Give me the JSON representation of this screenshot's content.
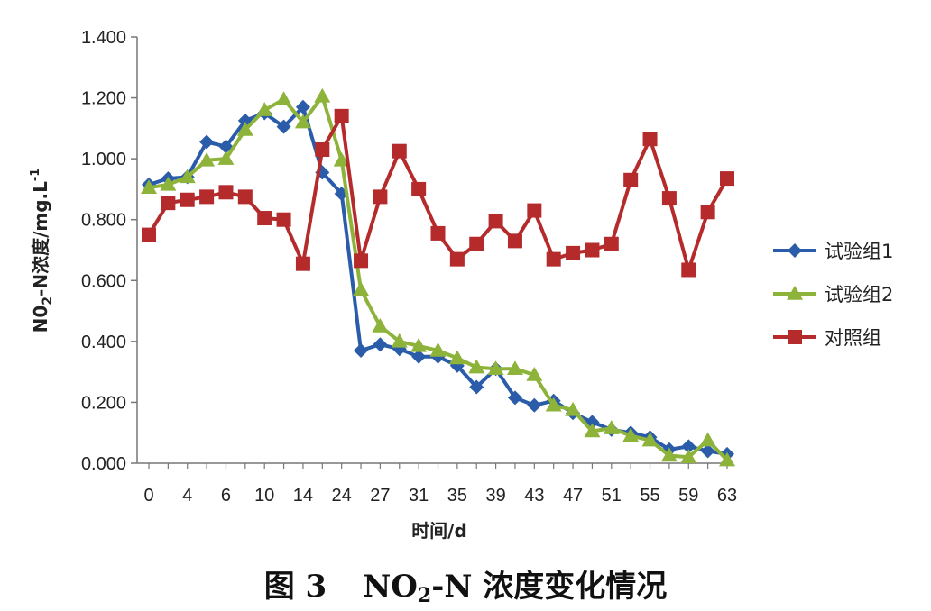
{
  "chart_data": {
    "type": "line",
    "caption_prefix": "图 3",
    "caption_rest": "-N 浓度变化情况",
    "caption_chem": {
      "base": "NO",
      "sub": "2"
    },
    "xlabel": "时间/d",
    "ylabel": {
      "pre": "N0",
      "sub": "2",
      "mid": "-N浓度/mg.L",
      "sup": "-1"
    },
    "ylim": [
      0,
      1.4
    ],
    "yticks": [
      "0.000",
      "0.200",
      "0.400",
      "0.600",
      "0.800",
      "1.000",
      "1.200",
      "1.400"
    ],
    "ytick_values": [
      0,
      0.2,
      0.4,
      0.6,
      0.8,
      1.0,
      1.2,
      1.4
    ],
    "xtick_labels": [
      "0",
      "4",
      "6",
      "10",
      "14",
      "24",
      "27",
      "31",
      "35",
      "39",
      "43",
      "47",
      "51",
      "55",
      "59",
      "63"
    ],
    "grid": false,
    "legend_position": "right",
    "series": [
      {
        "name": "试验组1",
        "color": "#2a5caa",
        "marker": "diamond",
        "values": [
          0.915,
          0.935,
          0.94,
          1.055,
          1.04,
          1.125,
          1.15,
          1.105,
          1.17,
          0.955,
          0.885,
          0.37,
          0.39,
          0.375,
          0.35,
          0.35,
          0.32,
          0.25,
          0.31,
          0.215,
          0.19,
          0.205,
          0.165,
          0.135,
          0.11,
          0.1,
          0.085,
          0.045,
          0.055,
          0.04,
          0.03
        ]
      },
      {
        "name": "试验组2",
        "color": "#8db33a",
        "marker": "triangle",
        "values": [
          0.905,
          0.915,
          0.94,
          0.995,
          1.0,
          1.095,
          1.16,
          1.195,
          1.12,
          1.205,
          0.995,
          0.57,
          0.45,
          0.4,
          0.385,
          0.37,
          0.345,
          0.315,
          0.31,
          0.31,
          0.29,
          0.19,
          0.175,
          0.105,
          0.115,
          0.09,
          0.075,
          0.025,
          0.02,
          0.075,
          0.01
        ]
      },
      {
        "name": "对照组",
        "color": "#b52b2b",
        "marker": "square",
        "values": [
          0.75,
          0.855,
          0.865,
          0.875,
          0.89,
          0.875,
          0.805,
          0.8,
          0.655,
          1.03,
          1.14,
          0.665,
          0.875,
          1.025,
          0.9,
          0.755,
          0.67,
          0.72,
          0.795,
          0.73,
          0.83,
          0.67,
          0.69,
          0.7,
          0.72,
          0.93,
          1.065,
          0.87,
          0.635,
          0.825,
          0.935
        ]
      }
    ]
  }
}
